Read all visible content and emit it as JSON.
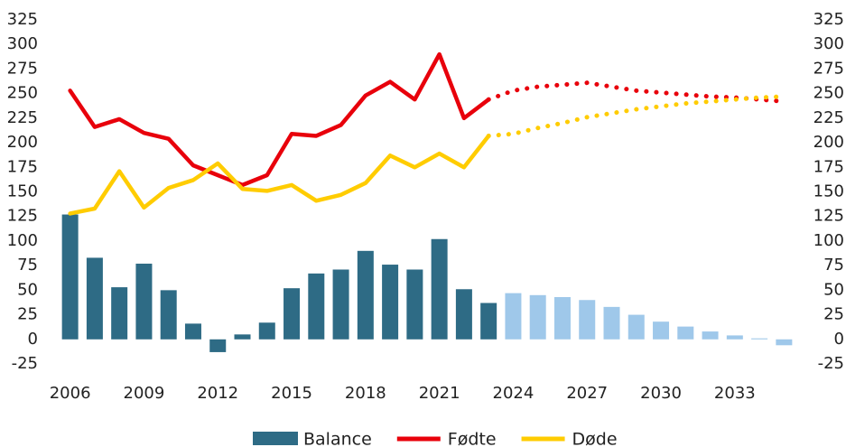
{
  "chart_data": {
    "type": "bar-line",
    "x": [
      2006,
      2007,
      2008,
      2009,
      2010,
      2011,
      2012,
      2013,
      2014,
      2015,
      2016,
      2017,
      2018,
      2019,
      2020,
      2021,
      2022,
      2023,
      2024,
      2025,
      2026,
      2027,
      2028,
      2029,
      2030,
      2031,
      2032,
      2033,
      2034,
      2035
    ],
    "xlim": [
      2005.5,
      2035.5
    ],
    "xticks": [
      2006,
      2009,
      2012,
      2015,
      2018,
      2021,
      2024,
      2027,
      2030,
      2033
    ],
    "ylim": [
      -25,
      325
    ],
    "yticks": [
      -25,
      0,
      25,
      50,
      75,
      100,
      125,
      150,
      175,
      200,
      225,
      250,
      275,
      300,
      325
    ],
    "y2lim": [
      -25,
      325
    ],
    "y2ticks": [
      -25,
      0,
      25,
      50,
      75,
      100,
      125,
      150,
      175,
      200,
      225,
      250,
      275,
      300,
      325
    ],
    "forecast_start": 2024,
    "legend": "bottom",
    "grid": false,
    "series": [
      {
        "name": "Balance",
        "kind": "bar",
        "color": "#2e6b85",
        "forecast_color": "#9fc8ea",
        "values": [
          127,
          83,
          53,
          77,
          50,
          16,
          -13,
          5,
          17,
          52,
          67,
          71,
          90,
          76,
          71,
          102,
          51,
          37,
          47,
          45,
          43,
          40,
          33,
          25,
          18,
          13,
          8,
          4,
          1,
          -6
        ]
      },
      {
        "name": "Fødte",
        "kind": "line",
        "color": "#e8000b",
        "values": [
          253,
          216,
          224,
          210,
          204,
          177,
          167,
          157,
          167,
          209,
          207,
          218,
          248,
          262,
          244,
          290,
          225,
          244,
          253,
          257,
          259,
          261,
          257,
          253,
          251,
          249,
          247,
          246,
          244,
          242
        ]
      },
      {
        "name": "Døde",
        "kind": "line",
        "color": "#ffcc00",
        "values": [
          128,
          133,
          171,
          134,
          154,
          162,
          179,
          153,
          151,
          157,
          141,
          147,
          159,
          187,
          175,
          189,
          175,
          207,
          209,
          215,
          220,
          226,
          230,
          234,
          237,
          240,
          242,
          244,
          246,
          247
        ]
      }
    ]
  }
}
